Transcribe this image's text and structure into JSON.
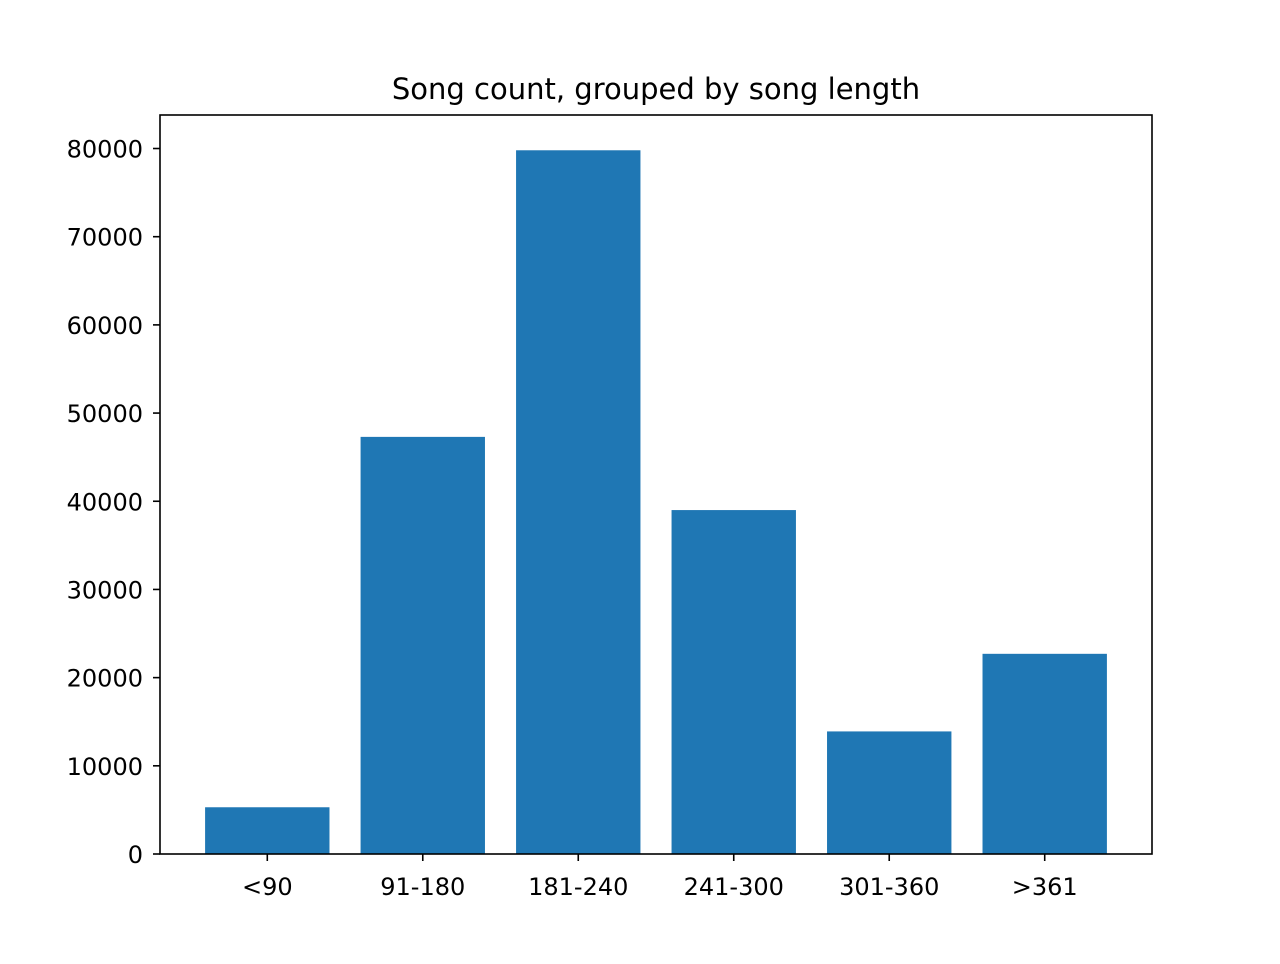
{
  "chart_data": {
    "type": "bar",
    "title": "Song count, grouped by song length",
    "xlabel": "",
    "ylabel": "",
    "categories": [
      "<90",
      "91-180",
      "181-240",
      "241-300",
      "301-360",
      ">361"
    ],
    "values": [
      5300,
      47300,
      79800,
      39000,
      13900,
      22700
    ],
    "ylim": [
      0,
      83800
    ],
    "yticks": [
      0,
      10000,
      20000,
      30000,
      40000,
      50000,
      60000,
      70000,
      80000
    ],
    "grid": false,
    "legend": "none",
    "bar_color": "#1f77b4"
  }
}
